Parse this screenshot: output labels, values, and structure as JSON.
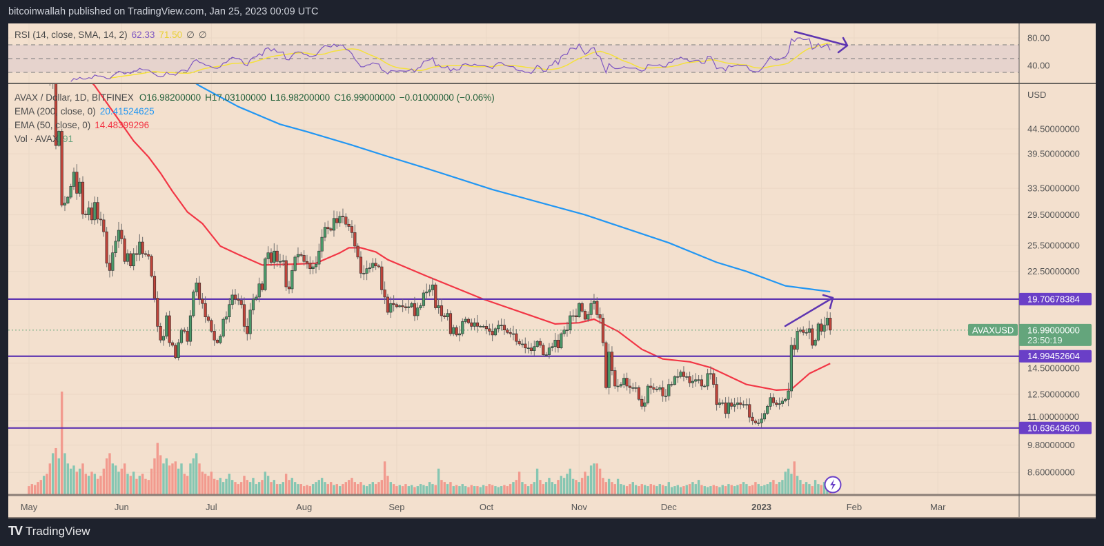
{
  "header": {
    "published": "bitcoinwallah published on TradingView.com, Jan 25, 2023 00:09 UTC"
  },
  "rsi_legend": {
    "label": "RSI (14, close, SMA, 14, 2)",
    "rsi_value": "62.33",
    "sma_value": "71.50",
    "extra1": "∅",
    "extra2": "∅"
  },
  "price_legend": {
    "symbol": "AVAX / Dollar, 1D, BITFINEX",
    "open": "O16.98200000",
    "high": "H17.03100000",
    "low": "L16.98200000",
    "close": "C16.99000000",
    "change": "−0.01000000 (−0.06%)",
    "ema200_label": "EMA (200, close, 0)",
    "ema200_value": "20.41524625",
    "ema50_label": "EMA (50, close, 0)",
    "ema50_value": "14.48399296",
    "vol_label": "Vol · AVAX",
    "vol_value": "91"
  },
  "footer": {
    "logo_mark": "TV",
    "brand": "TradingView"
  },
  "colors": {
    "background": "#f3e0ce",
    "up": "#4c9a6a",
    "down": "#c0443a",
    "vol_up": "#86c6b2",
    "vol_down": "#f29a8e",
    "ema200": "#2196f3",
    "ema50": "#f23645",
    "rsi": "#7e57c2",
    "rsi_sma": "#f5e13b",
    "level_line": "#5e35b1",
    "last_price": "#64a57c"
  },
  "chart_data": {
    "type": "candlestick",
    "symbol": "AVAXUSD",
    "interval": "1D",
    "y_scale": "log",
    "y_unit": "USD",
    "grid": true,
    "y_ticks": [
      44.5,
      39.5,
      33.5,
      29.5,
      25.5,
      22.5,
      14.5,
      12.5,
      11.0,
      9.8,
      8.6
    ],
    "y_tick_labels": [
      "44.50000000",
      "39.50000000",
      "33.50000000",
      "29.50000000",
      "25.50000000",
      "22.50000000",
      "14.50000000",
      "12.50000000",
      "11.00000000",
      "9.80000000",
      "8.60000000"
    ],
    "axis_unit_label": "USD",
    "x_ticks": [
      {
        "label": "May",
        "date": "2022-05-01"
      },
      {
        "label": "Jun",
        "date": "2022-06-01"
      },
      {
        "label": "Jul",
        "date": "2022-07-01"
      },
      {
        "label": "Aug",
        "date": "2022-08-01"
      },
      {
        "label": "Sep",
        "date": "2022-09-01"
      },
      {
        "label": "Oct",
        "date": "2022-10-01"
      },
      {
        "label": "Nov",
        "date": "2022-11-01"
      },
      {
        "label": "Dec",
        "date": "2022-12-01"
      },
      {
        "label": "2023",
        "date": "2023-01-01",
        "bold": true
      },
      {
        "label": "Feb",
        "date": "2023-02-01"
      },
      {
        "label": "Mar",
        "date": "2023-03-01"
      }
    ],
    "daily_close": [
      64.5,
      63.0,
      61.8,
      60.2,
      58.0,
      59.1,
      57.5,
      55.2,
      56.0,
      41.1,
      44.0,
      30.9,
      31.2,
      32.1,
      33.8,
      36.2,
      32.7,
      34.5,
      29.6,
      29.5,
      30.5,
      28.8,
      31.3,
      28.9,
      28.8,
      27.2,
      23.4,
      22.6,
      24.6,
      26.0,
      27.4,
      26.3,
      23.6,
      24.5,
      23.1,
      24.5,
      24.4,
      25.9,
      24.5,
      24.4,
      24.2,
      22.0,
      19.8,
      17.3,
      16.2,
      16.5,
      18.2,
      16.0,
      15.8,
      14.9,
      16.0,
      17.0,
      16.9,
      16.1,
      18.2,
      20.4,
      21.3,
      19.7,
      19.3,
      18.1,
      17.8,
      16.9,
      16.2,
      16.0,
      16.5,
      17.9,
      18.1,
      19.2,
      20.1,
      19.7,
      19.6,
      19.2,
      17.3,
      16.7,
      18.7,
      19.7,
      19.9,
      21.2,
      20.6,
      23.9,
      24.6,
      23.5,
      24.8,
      23.6,
      23.6,
      23.7,
      20.9,
      20.7,
      22.6,
      24.1,
      24.4,
      24.3,
      23.6,
      23.4,
      22.8,
      23.0,
      23.3,
      24.8,
      26.5,
      27.8,
      27.6,
      27.4,
      29.0,
      28.4,
      29.3,
      29.2,
      28.2,
      27.9,
      27.1,
      25.4,
      24.1,
      22.3,
      22.3,
      22.8,
      22.9,
      23.4,
      23.1,
      23.0,
      20.6,
      19.9,
      18.5,
      19.3,
      19.2,
      19.0,
      19.1,
      19.0,
      18.9,
      19.0,
      19.3,
      18.2,
      18.9,
      19.1,
      20.3,
      20.4,
      20.6,
      21.1,
      18.9,
      19.1,
      18.2,
      18.1,
      18.4,
      16.7,
      17.2,
      16.6,
      16.7,
      17.7,
      17.9,
      17.6,
      17.3,
      17.6,
      17.3,
      17.3,
      17.3,
      17.1,
      16.9,
      16.6,
      17.1,
      17.4,
      17.4,
      17.0,
      16.8,
      16.7,
      16.7,
      16.1,
      15.9,
      15.9,
      15.6,
      15.6,
      15.4,
      15.7,
      16.1,
      15.8,
      15.1,
      15.1,
      15.6,
      15.7,
      16.2,
      15.6,
      16.7,
      17.0,
      17.0,
      18.2,
      18.2,
      18.1,
      19.3,
      18.6,
      17.9,
      18.3,
      19.3,
      19.5,
      18.3,
      18.0,
      16.0,
      12.9,
      15.3,
      14.0,
      13.0,
      13.0,
      13.1,
      13.5,
      13.0,
      12.9,
      12.9,
      12.9,
      12.2,
      11.8,
      12.0,
      13.0,
      12.9,
      12.8,
      12.8,
      12.9,
      12.4,
      12.4,
      13.1,
      13.1,
      13.6,
      13.6,
      13.9,
      13.6,
      13.6,
      13.2,
      13.3,
      13.4,
      13.4,
      13.0,
      13.0,
      13.8,
      13.8,
      13.1,
      11.9,
      12.0,
      12.0,
      11.4,
      12.0,
      11.8,
      11.9,
      12.0,
      11.9,
      11.9,
      11.9,
      11.2,
      11.0,
      10.9,
      10.9,
      11.1,
      11.4,
      11.8,
      12.3,
      12.0,
      11.9,
      11.95,
      12.1,
      12.2,
      12.7,
      15.8,
      15.5,
      16.9,
      17.0,
      16.8,
      16.8,
      17.1,
      15.8,
      16.2,
      17.5,
      16.9,
      17.4,
      18.0,
      16.99
    ],
    "volume_relative": [
      8,
      10,
      9,
      12,
      14,
      18,
      20,
      30,
      40,
      45,
      35,
      100,
      40,
      30,
      25,
      28,
      22,
      25,
      30,
      20,
      18,
      22,
      20,
      15,
      18,
      25,
      35,
      40,
      30,
      28,
      22,
      25,
      30,
      20,
      18,
      22,
      15,
      18,
      20,
      15,
      14,
      25,
      35,
      50,
      38,
      30,
      35,
      28,
      30,
      32,
      25,
      30,
      20,
      18,
      30,
      35,
      40,
      30,
      22,
      20,
      18,
      22,
      15,
      14,
      16,
      12,
      15,
      20,
      14,
      12,
      10,
      12,
      18,
      14,
      12,
      16,
      10,
      12,
      14,
      22,
      18,
      12,
      14,
      10,
      10,
      12,
      20,
      14,
      16,
      12,
      10,
      10,
      8,
      9,
      8,
      10,
      12,
      14,
      16,
      12,
      10,
      12,
      9,
      10,
      8,
      10,
      12,
      14,
      16,
      12,
      10,
      12,
      9,
      8,
      10,
      12,
      10,
      12,
      14,
      32,
      18,
      12,
      10,
      8,
      9,
      8,
      10,
      8,
      9,
      7,
      8,
      10,
      9,
      8,
      12,
      10,
      9,
      25,
      14,
      12,
      10,
      12,
      8,
      9,
      8,
      10,
      8,
      7,
      9,
      8,
      8,
      7,
      9,
      8,
      10,
      9,
      8,
      7,
      8,
      9,
      8,
      10,
      12,
      14,
      22,
      12,
      10,
      8,
      10,
      12,
      25,
      14,
      10,
      12,
      16,
      12,
      10,
      14,
      18,
      16,
      20,
      25,
      15,
      14,
      12,
      16,
      22,
      18,
      28,
      30,
      30,
      25,
      16,
      12,
      15,
      12,
      10,
      15,
      10,
      9,
      8,
      10,
      12,
      9,
      8,
      10,
      9,
      8,
      10,
      9,
      8,
      10,
      9,
      8,
      12,
      7,
      8,
      9,
      7,
      8,
      9,
      10,
      12,
      10,
      14,
      9,
      8,
      7,
      8,
      9,
      8,
      7,
      9,
      8,
      10,
      9,
      8,
      9,
      10,
      12,
      10,
      8,
      9,
      12,
      10,
      8,
      9,
      10,
      12,
      14,
      10,
      12,
      14,
      22,
      25,
      20,
      32,
      18,
      14,
      10,
      12,
      10,
      8,
      14,
      10,
      9,
      12,
      8,
      6
    ],
    "ema200": {
      "name": "EMA (200, close, 0)",
      "points_day_price": [
        [
          50,
          58.5
        ],
        [
          57,
          54.7
        ],
        [
          70,
          49.5
        ],
        [
          84,
          45.5
        ],
        [
          93,
          43.9
        ],
        [
          108,
          41.2
        ],
        [
          120,
          39.0
        ],
        [
          132,
          37.0
        ],
        [
          155,
          33.3
        ],
        [
          186,
          29.5
        ],
        [
          214,
          25.8
        ],
        [
          230,
          23.5
        ],
        [
          240,
          22.5
        ],
        [
          253,
          21.0
        ],
        [
          268,
          20.42
        ]
      ]
    },
    "ema50": {
      "name": "EMA (50, close, 0)",
      "points_day_price": [
        [
          20,
          56.5
        ],
        [
          22,
          54.7
        ],
        [
          35,
          42.0
        ],
        [
          40,
          38.9
        ],
        [
          44,
          36.0
        ],
        [
          48,
          33.0
        ],
        [
          53,
          29.9
        ],
        [
          58,
          28.3
        ],
        [
          64,
          25.4
        ],
        [
          70,
          24.4
        ],
        [
          78,
          23.2
        ],
        [
          89,
          23.3
        ],
        [
          96,
          23.4
        ],
        [
          104,
          24.6
        ],
        [
          107,
          25.2
        ],
        [
          111,
          25.2
        ],
        [
          116,
          24.7
        ],
        [
          120,
          23.8
        ],
        [
          133,
          22.0
        ],
        [
          152,
          19.7
        ],
        [
          176,
          17.5
        ],
        [
          184,
          17.6
        ],
        [
          189,
          17.9
        ],
        [
          197,
          16.9
        ],
        [
          205,
          15.5
        ],
        [
          212,
          14.8
        ],
        [
          221,
          14.6
        ],
        [
          228,
          14.2
        ],
        [
          240,
          13.1
        ],
        [
          250,
          12.75
        ],
        [
          255,
          12.8
        ],
        [
          261,
          13.8
        ],
        [
          268,
          14.48
        ]
      ]
    },
    "horizontal_levels": [
      {
        "price": 19.70678384,
        "label": "19.70678384"
      },
      {
        "price": 14.99452604,
        "label": "14.99452604"
      },
      {
        "price": 10.6364362,
        "label": "10.63643620"
      }
    ],
    "last_price": {
      "price": 16.99,
      "label": "16.99000000",
      "countdown": "23:50:19",
      "symbol_tag": "AVAXUSD"
    },
    "rsi": {
      "length": 14,
      "sma_length": 14,
      "y_ticks": [
        80,
        40
      ],
      "y_tick_labels": [
        "80.00",
        "40.00"
      ],
      "band": [
        30,
        70
      ],
      "mid": 50
    },
    "annotations": [
      "rsi-downtrend-arrow",
      "price-uptrend-arrow"
    ]
  }
}
